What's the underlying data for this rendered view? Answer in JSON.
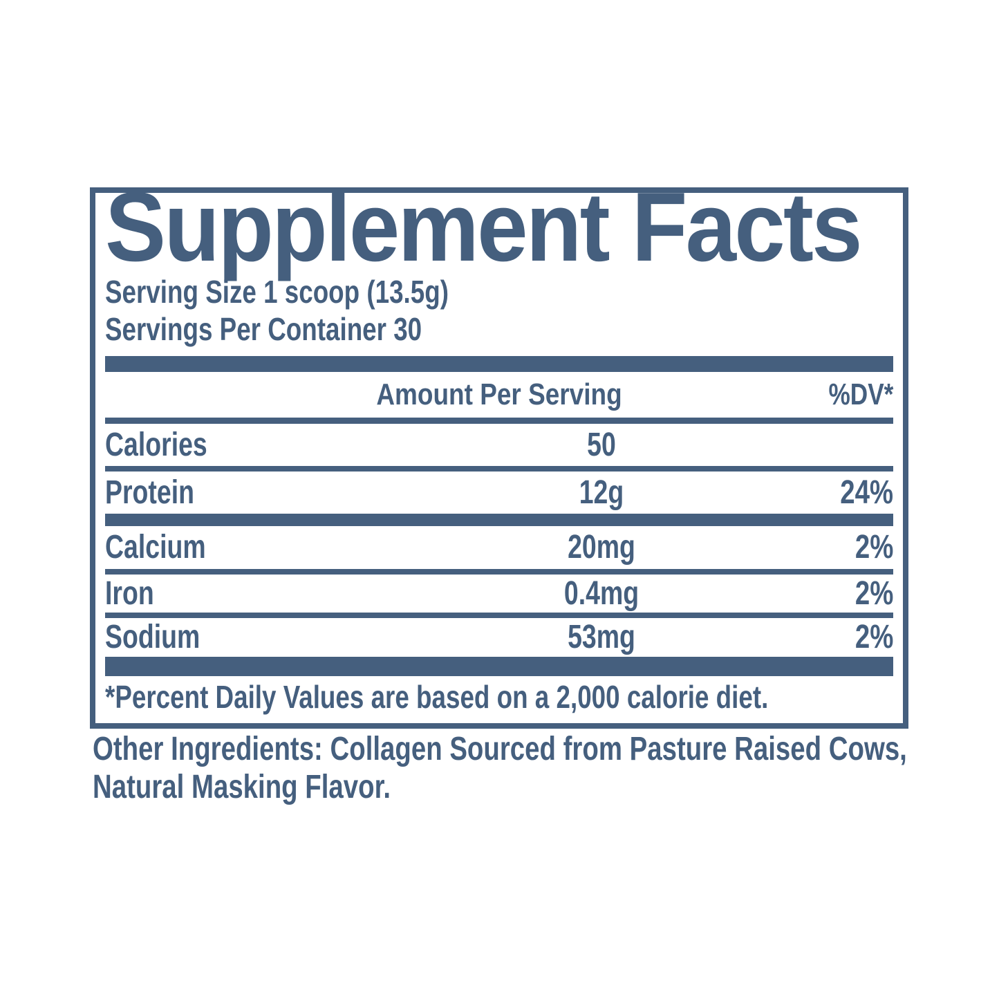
{
  "colors": {
    "ink": "#455f7e",
    "background": "#ffffff"
  },
  "label": {
    "title": "Supplement Facts",
    "serving_size": "Serving Size 1 scoop (13.5g)",
    "servings_per_container": "Servings Per Container 30",
    "columns": {
      "amount": "Amount Per Serving",
      "dv": "%DV*"
    },
    "rows": [
      {
        "name": "Calories",
        "amount": "50",
        "dv": ""
      },
      {
        "name": "Protein",
        "amount": "12g",
        "dv": "24%"
      },
      {
        "name": "Calcium",
        "amount": "20mg",
        "dv": "2%"
      },
      {
        "name": "Iron",
        "amount": "0.4mg",
        "dv": "2%"
      },
      {
        "name": "Sodium",
        "amount": "53mg",
        "dv": "2%"
      }
    ],
    "footnote": "*Percent Daily Values are based on a 2,000 calorie diet.",
    "other_ingredients": {
      "line1": "Other Ingredients: Collagen Sourced from Pasture Raised Cows,",
      "line2": "Natural Masking Flavor."
    }
  }
}
